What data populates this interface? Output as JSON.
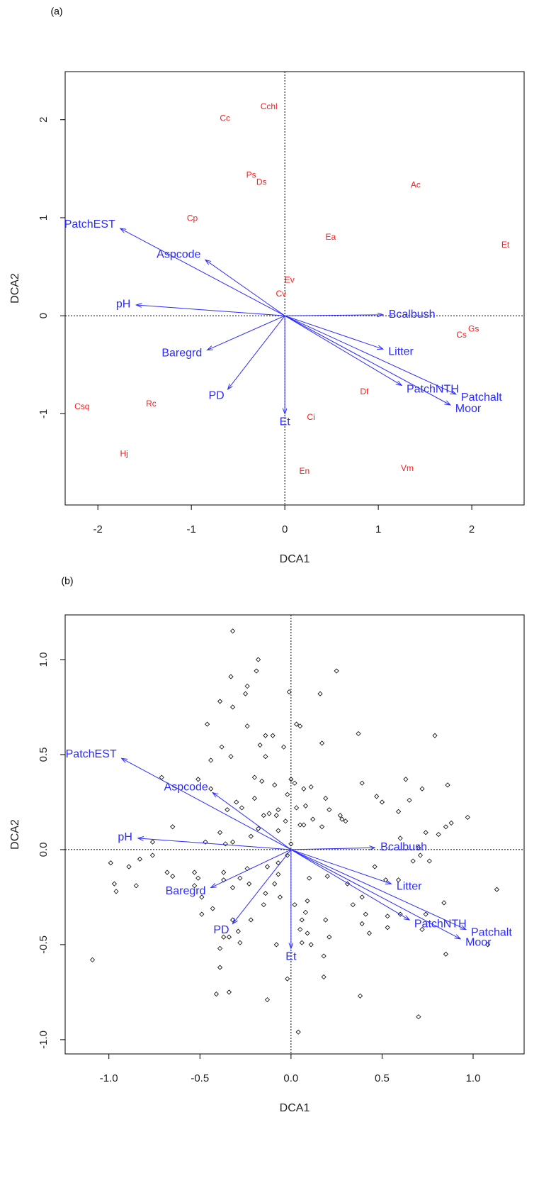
{
  "chart_data": [
    {
      "type": "biplot",
      "panel_label": "(a)",
      "xlabel": "DCA1",
      "ylabel": "DCA2",
      "xlim": [
        -2.35,
        2.56
      ],
      "ylim": [
        -1.93,
        2.49
      ],
      "xticks": [
        -2,
        -1,
        0,
        1,
        2
      ],
      "yticks": [
        -1,
        0,
        1,
        2
      ],
      "species": {
        "color": "#ff1a1a",
        "labels": [
          "Cchl",
          "Cc",
          "Ps",
          "Ds",
          "Ac",
          "Cp",
          "Et",
          "Ea",
          "Ev",
          "Cv",
          "Gs",
          "Cs",
          "Df",
          "Csq",
          "Rc",
          "Ci",
          "Hj",
          "En",
          "Vm"
        ],
        "x": [
          -0.17,
          -0.64,
          -0.36,
          -0.25,
          1.4,
          -0.99,
          2.36,
          0.49,
          0.05,
          -0.04,
          2.02,
          1.89,
          0.85,
          -2.17,
          -1.43,
          0.28,
          -1.72,
          0.21,
          1.31
        ],
        "y": [
          2.13,
          2.01,
          1.43,
          1.36,
          1.33,
          0.99,
          0.72,
          0.8,
          0.36,
          0.22,
          -0.14,
          -0.2,
          -0.78,
          -0.93,
          -0.9,
          -1.04,
          -1.41,
          -1.59,
          -1.56
        ]
      },
      "vectors": {
        "color": "#2b2bff",
        "labels": [
          "PatchEST",
          "Aspcode",
          "pH",
          "Bcalbush",
          "Litter",
          "Baregrd",
          "PatchNTH",
          "Patchalt",
          "Moor",
          "PD",
          "Et"
        ],
        "x": [
          -1.76,
          -0.85,
          -1.59,
          1.05,
          1.05,
          -0.83,
          1.25,
          1.83,
          1.77,
          -0.61,
          0.0
        ],
        "y": [
          0.89,
          0.57,
          0.11,
          0.01,
          -0.34,
          -0.35,
          -0.71,
          -0.8,
          -0.91,
          -0.75,
          -1.0
        ]
      }
    },
    {
      "type": "biplot",
      "panel_label": "(b)",
      "xlabel": "DCA1",
      "ylabel": "DCA2",
      "xlim": [
        -1.24,
        1.28
      ],
      "ylim": [
        -1.075,
        1.235
      ],
      "xticks": [
        {
          "value": -1,
          "label": "-1.0"
        },
        -0.5,
        {
          "value": 0,
          "label": "0.0"
        },
        0.5,
        {
          "value": 1,
          "label": "1.0"
        }
      ],
      "yticks": [
        {
          "value": -1,
          "label": "-1.0"
        },
        -0.5,
        {
          "value": 0,
          "label": "0.0"
        },
        0.5,
        {
          "value": 1,
          "label": "1.0"
        }
      ],
      "sites": {
        "color": "#000000",
        "x": [
          -0.32,
          -0.18,
          -0.19,
          0.25,
          -0.01,
          -0.33,
          -0.24,
          -0.25,
          -0.39,
          -0.32,
          0.16,
          -0.46,
          -0.24,
          -0.14,
          -0.1,
          -0.17,
          -0.38,
          -0.44,
          -0.04,
          0.03,
          0.05,
          0.37,
          0.79,
          0.17,
          -0.33,
          -0.14,
          -0.71,
          -0.51,
          -0.44,
          -0.2,
          -0.16,
          -0.09,
          0.0,
          0.02,
          0.07,
          0.11,
          -0.3,
          -0.35,
          -0.2,
          -0.27,
          -0.12,
          -0.07,
          -0.02,
          0.03,
          0.08,
          0.19,
          0.39,
          0.47,
          0.63,
          0.72,
          0.86,
          0.97,
          0.65,
          0.59,
          0.5,
          0.21,
          0.28,
          0.3,
          0.12,
          0.17,
          0.05,
          0.07,
          -0.15,
          -0.08,
          -0.03,
          -0.07,
          -0.18,
          -0.22,
          -0.32,
          -0.39,
          -0.36,
          -0.47,
          -0.65,
          -0.76,
          -0.76,
          -0.99,
          -0.89,
          -0.83,
          -0.85,
          -0.97,
          -0.96,
          -0.68,
          -0.65,
          -0.53,
          -0.51,
          -0.53,
          -0.49,
          -0.37,
          -0.37,
          -0.28,
          -0.24,
          -0.32,
          -0.23,
          -0.13,
          -0.07,
          -0.07,
          -0.09,
          -0.14,
          -0.06,
          -0.15,
          -0.22,
          -0.32,
          -0.34,
          -0.29,
          -0.37,
          -0.28,
          -0.39,
          -0.39,
          -0.08,
          0.02,
          0.09,
          0.08,
          0.06,
          0.05,
          0.09,
          0.06,
          0.11,
          0.18,
          0.21,
          0.19,
          0.1,
          0.2,
          0.31,
          0.39,
          0.34,
          0.41,
          0.39,
          0.43,
          0.53,
          0.53,
          0.6,
          0.74,
          0.72,
          0.84,
          0.85,
          0.46,
          0.52,
          0.59,
          0.67,
          0.71,
          0.76,
          1.08,
          1.13,
          -1.09,
          0.18,
          -0.41,
          -0.34,
          -0.13,
          -0.02,
          0.38,
          0.7,
          0.04,
          0.88,
          0.85,
          0.74,
          0.6,
          0.7,
          0.81,
          0.27,
          -0.02,
          0.0,
          -0.43,
          -0.49
        ],
        "y": [
          1.15,
          1.0,
          0.94,
          0.94,
          0.83,
          0.91,
          0.86,
          0.82,
          0.78,
          0.75,
          0.82,
          0.66,
          0.65,
          0.6,
          0.6,
          0.55,
          0.54,
          0.47,
          0.54,
          0.66,
          0.65,
          0.61,
          0.6,
          0.56,
          0.49,
          0.49,
          0.38,
          0.37,
          0.32,
          0.38,
          0.36,
          0.34,
          0.37,
          0.35,
          0.32,
          0.33,
          0.25,
          0.21,
          0.27,
          0.22,
          0.19,
          0.21,
          0.29,
          0.22,
          0.23,
          0.27,
          0.35,
          0.28,
          0.37,
          0.32,
          0.34,
          0.17,
          0.26,
          0.2,
          0.25,
          0.21,
          0.16,
          0.15,
          0.16,
          0.12,
          0.13,
          0.13,
          0.18,
          0.18,
          0.15,
          0.1,
          0.11,
          0.07,
          0.04,
          0.09,
          0.03,
          0.04,
          0.12,
          0.04,
          -0.03,
          -0.07,
          -0.09,
          -0.05,
          -0.19,
          -0.18,
          -0.22,
          -0.12,
          -0.14,
          -0.12,
          -0.15,
          -0.19,
          -0.25,
          -0.12,
          -0.16,
          -0.15,
          -0.1,
          -0.2,
          -0.18,
          -0.09,
          -0.13,
          -0.07,
          -0.18,
          -0.23,
          -0.25,
          -0.29,
          -0.37,
          -0.37,
          -0.46,
          -0.43,
          -0.46,
          -0.49,
          -0.52,
          -0.62,
          -0.5,
          -0.29,
          -0.27,
          -0.33,
          -0.37,
          -0.42,
          -0.44,
          -0.49,
          -0.5,
          -0.56,
          -0.46,
          -0.37,
          -0.15,
          -0.14,
          -0.18,
          -0.25,
          -0.29,
          -0.34,
          -0.39,
          -0.44,
          -0.35,
          -0.41,
          -0.34,
          -0.34,
          -0.42,
          -0.28,
          -0.55,
          -0.09,
          -0.16,
          -0.16,
          -0.06,
          -0.03,
          -0.06,
          -0.5,
          -0.21,
          -0.58,
          -0.67,
          -0.76,
          -0.75,
          -0.79,
          -0.68,
          -0.77,
          -0.88,
          -0.96,
          0.14,
          0.12,
          0.09,
          0.06,
          0.01,
          0.08,
          0.18,
          -0.03,
          0.03,
          -0.31,
          -0.34
        ]
      },
      "vectors": {
        "color": "#2b2bff",
        "labels": [
          "PatchEST",
          "Aspcode",
          "pH",
          "Bcalbush",
          "Litter",
          "Baregrd",
          "PatchNTH",
          "Patchalt",
          "Moor",
          "PD",
          "Et"
        ],
        "x": [
          -0.93,
          -0.43,
          -0.84,
          0.46,
          0.55,
          -0.44,
          0.65,
          0.96,
          0.93,
          -0.32,
          0.0
        ],
        "y": [
          0.48,
          0.3,
          0.06,
          0.01,
          -0.18,
          -0.2,
          -0.37,
          -0.42,
          -0.47,
          -0.39,
          -0.52
        ]
      }
    }
  ]
}
